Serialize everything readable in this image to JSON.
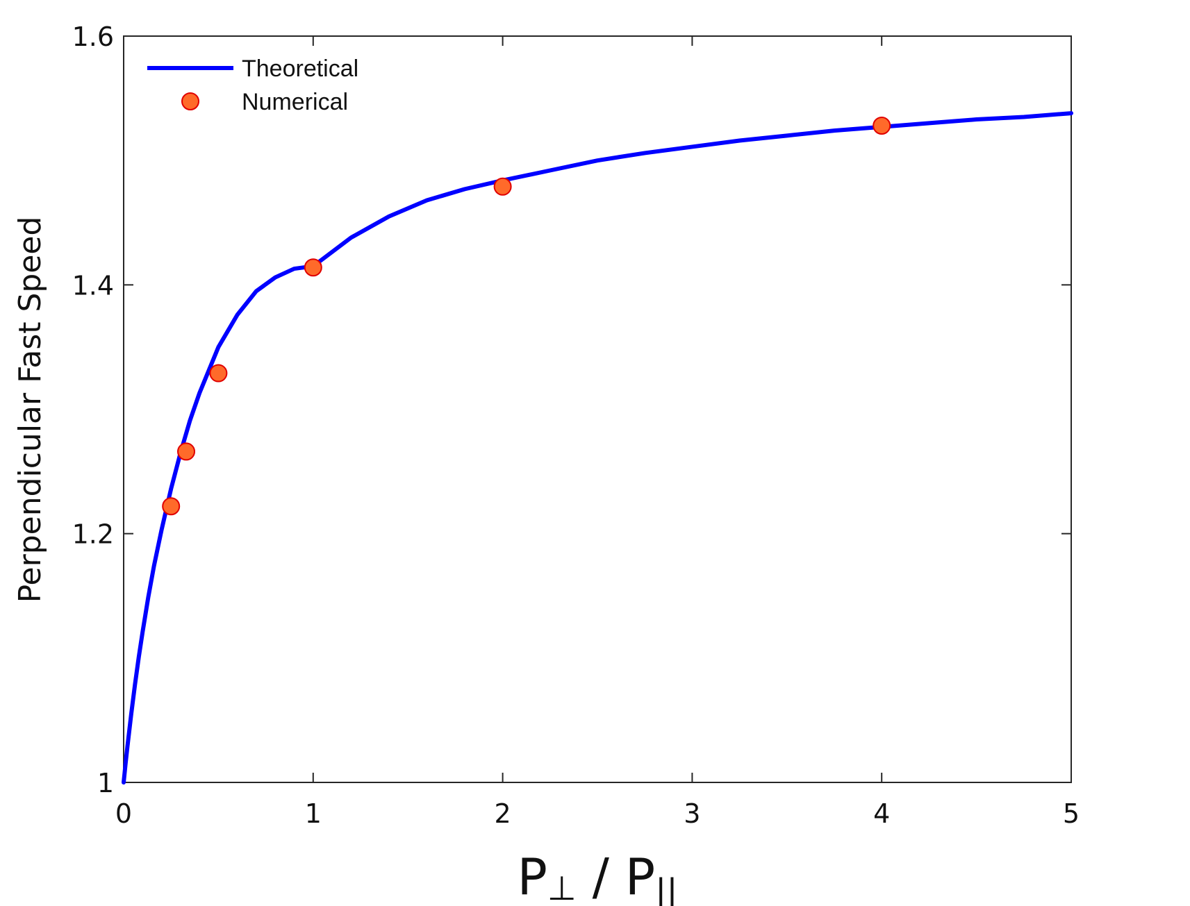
{
  "chart_data": {
    "type": "line",
    "xlabel": {
      "main1": "P",
      "sub1": "⊥",
      "sep": " / ",
      "main2": "P",
      "sub2": "||"
    },
    "ylabel": "Perpendicular Fast Speed",
    "xlim": [
      0,
      5
    ],
    "ylim": [
      1,
      1.6
    ],
    "xticks": [
      "0",
      "1",
      "2",
      "3",
      "4",
      "5"
    ],
    "yticks": [
      "1",
      "1.2",
      "1.4",
      "1.6"
    ],
    "grid": false,
    "legend_position": "top-left",
    "series": [
      {
        "name": "Theoretical",
        "kind": "line",
        "color": "#0000ff",
        "x": [
          0,
          0.01,
          0.02,
          0.04,
          0.06,
          0.08,
          0.1,
          0.13,
          0.16,
          0.2,
          0.25,
          0.3,
          0.35,
          0.4,
          0.5,
          0.6,
          0.7,
          0.8,
          0.9,
          1.0,
          1.2,
          1.4,
          1.6,
          1.8,
          2.0,
          2.25,
          2.5,
          2.75,
          3.0,
          3.25,
          3.5,
          3.75,
          4.0,
          4.25,
          4.5,
          4.75,
          5.0
        ],
        "y": [
          1.0,
          1.015,
          1.029,
          1.055,
          1.079,
          1.101,
          1.121,
          1.149,
          1.174,
          1.203,
          1.236,
          1.265,
          1.291,
          1.313,
          1.35,
          1.376,
          1.395,
          1.406,
          1.413,
          1.415,
          1.438,
          1.455,
          1.468,
          1.477,
          1.484,
          1.492,
          1.5,
          1.506,
          1.511,
          1.516,
          1.52,
          1.524,
          1.527,
          1.53,
          1.533,
          1.535,
          1.538
        ]
      },
      {
        "name": "Numerical",
        "kind": "marker",
        "color": "#ff6a2a",
        "edge_color": "#e00000",
        "x": [
          0.25,
          0.33,
          0.5,
          1.0,
          2.0,
          4.0
        ],
        "y": [
          1.222,
          1.266,
          1.329,
          1.414,
          1.479,
          1.528
        ]
      }
    ]
  }
}
